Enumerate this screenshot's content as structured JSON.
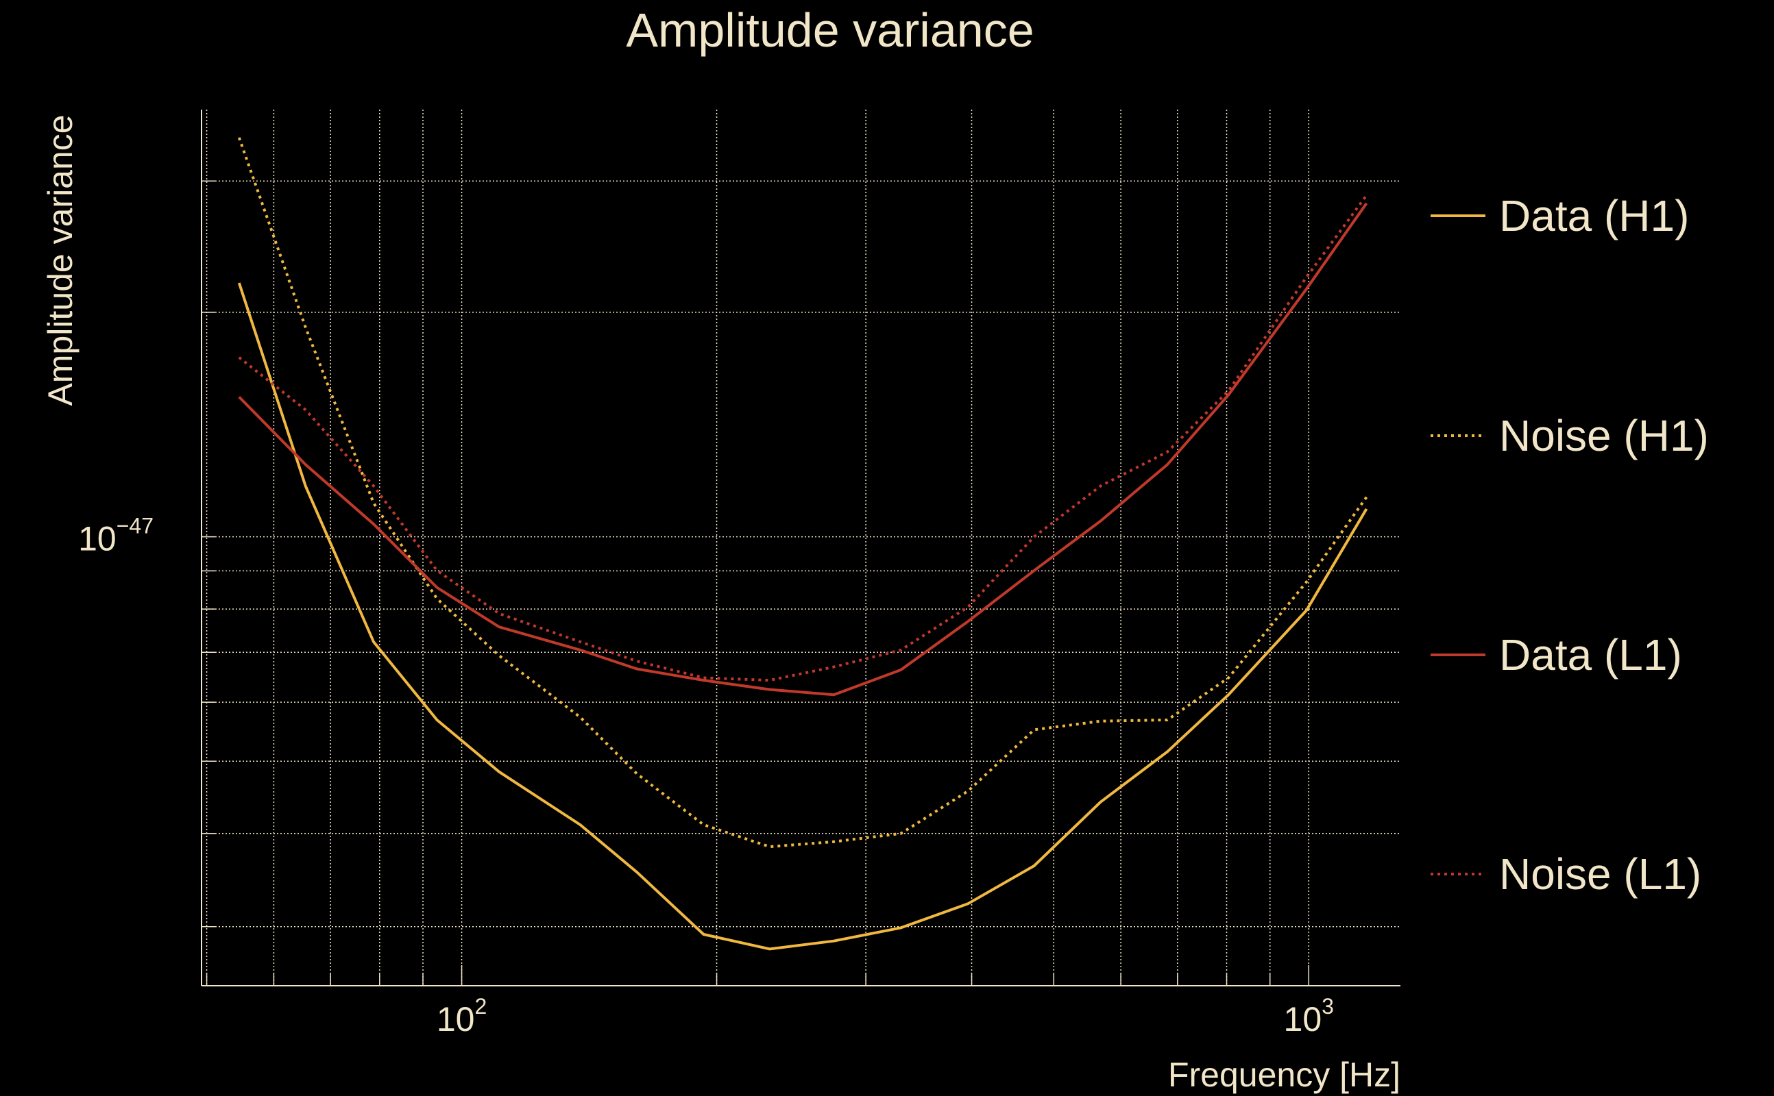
{
  "chart_data": {
    "type": "line",
    "title": "Amplitude variance",
    "xlabel": "Frequency [Hz]",
    "ylabel": "Amplitude variance",
    "xscale": "log",
    "yscale": "log",
    "xlim": [
      49.3,
      1283
    ],
    "ylim": [
      2.5e-48,
      3.74e-47
    ],
    "grid": true,
    "legend_placement": "right-outside",
    "x_ticks": [
      {
        "value": 100,
        "base": "10",
        "exp": "2"
      },
      {
        "value": 1000,
        "base": "10",
        "exp": "3"
      }
    ],
    "y_ticks": [
      {
        "value": 1e-47,
        "base": "10",
        "exp": "−47"
      }
    ],
    "x_gridlines": [
      50,
      60,
      70,
      80,
      90,
      100,
      200,
      300,
      400,
      500,
      600,
      700,
      800,
      900,
      1000
    ],
    "y_gridlines": [
      3e-48,
      4e-48,
      5e-48,
      6e-48,
      7e-48,
      8e-48,
      9e-48,
      1e-47,
      2e-47,
      3e-47
    ],
    "x": [
      54.6,
      65.4,
      78.7,
      93.5,
      110.7,
      138,
      161,
      193,
      231,
      275,
      330,
      396,
      474,
      568,
      681,
      804,
      994,
      1170
    ],
    "series": [
      {
        "name": "Data (H1)",
        "color": "#f0b840",
        "style": "solid",
        "values": [
          2.19e-47,
          1.17e-47,
          7.23e-48,
          5.68e-48,
          4.84e-48,
          4.11e-48,
          3.55e-48,
          2.93e-48,
          2.8e-48,
          2.87e-48,
          2.99e-48,
          3.22e-48,
          3.62e-48,
          4.41e-48,
          5.15e-48,
          6.14e-48,
          7.97e-48,
          1.09e-47
        ]
      },
      {
        "name": "Noise (H1)",
        "color": "#f0b840",
        "style": "dotted",
        "values": [
          3.43e-47,
          1.91e-47,
          1.11e-47,
          8.26e-48,
          6.93e-48,
          5.73e-48,
          4.81e-48,
          4.11e-48,
          3.84e-48,
          3.9e-48,
          4e-48,
          4.56e-48,
          5.51e-48,
          5.66e-48,
          5.68e-48,
          6.47e-48,
          8.7e-48,
          1.13e-47
        ]
      },
      {
        "name": "Data (L1)",
        "color": "#c0392b",
        "style": "solid",
        "values": [
          1.54e-47,
          1.25e-47,
          1.04e-47,
          8.55e-48,
          7.57e-48,
          7.05e-48,
          6.65e-48,
          6.42e-48,
          6.24e-48,
          6.14e-48,
          6.63e-48,
          7.7e-48,
          9.01e-48,
          1.05e-47,
          1.25e-47,
          1.55e-47,
          2.15e-47,
          2.8e-47
        ]
      },
      {
        "name": "Noise (L1)",
        "color": "#c0392b",
        "style": "dotted",
        "values": [
          1.74e-47,
          1.48e-47,
          1.17e-47,
          9.01e-48,
          7.89e-48,
          7.23e-48,
          6.81e-48,
          6.47e-48,
          6.42e-48,
          6.69e-48,
          7.05e-48,
          8.05e-48,
          1e-47,
          1.17e-47,
          1.3e-47,
          1.57e-47,
          2.23e-47,
          2.87e-47
        ]
      }
    ]
  }
}
